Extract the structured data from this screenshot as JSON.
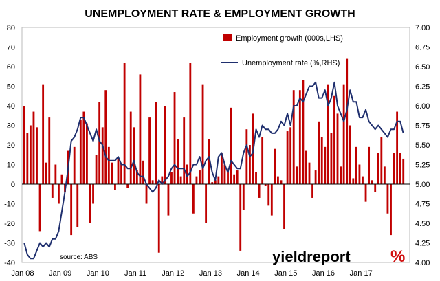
{
  "chart_data": {
    "type": "bar+line",
    "title": "UNEMPLOYMENT RATE & EMPLOYMENT GROWTH",
    "source": "source: ABS",
    "brand": {
      "text": "yieldreport",
      "symbol": "%",
      "accent_color": "#d11010"
    },
    "x_ticks": [
      "Jan 08",
      "Jan 09",
      "Jan 10",
      "Jan 11",
      "Jan 12",
      "Jan 13",
      "Jan 14",
      "Jan 15",
      "Jan 16",
      "Jan 17"
    ],
    "left_axis": {
      "ylim": [
        -40,
        80
      ],
      "ticks": [
        -40,
        -30,
        -20,
        -10,
        0,
        10,
        20,
        30,
        40,
        50,
        60,
        70,
        80
      ]
    },
    "right_axis": {
      "ylim": [
        4.0,
        7.0
      ],
      "ticks": [
        "4.00",
        "4.25",
        "4.50",
        "4.75",
        "5.00",
        "5.25",
        "5.50",
        "5.75",
        "6.00",
        "6.25",
        "6.50",
        "6.75",
        "7.00"
      ]
    },
    "grid": false,
    "legend_position": "top-right",
    "series": [
      {
        "name": "Employment growth (000s,LHS)",
        "type": "bar",
        "axis": "left",
        "color": "#c00000",
        "values": [
          40,
          26,
          30,
          37,
          29,
          -24,
          51,
          11,
          34,
          -7,
          10,
          -10,
          5,
          -4,
          17,
          -26,
          19,
          -22,
          33,
          37,
          31,
          -20,
          -10,
          15,
          42,
          29,
          48,
          19,
          11,
          -3,
          14,
          11,
          62,
          -2,
          37,
          29,
          7,
          56,
          12,
          -10,
          34,
          2,
          42,
          -35,
          4,
          40,
          -16,
          6,
          47,
          23,
          4,
          34,
          10,
          62,
          -15,
          4,
          7,
          51,
          -20,
          23,
          1,
          2,
          4,
          16,
          10,
          7,
          39,
          5,
          7,
          -34,
          -13,
          28,
          20,
          36,
          6,
          -7,
          24,
          -1,
          -11,
          -16,
          18,
          4,
          2,
          -23,
          27,
          29,
          48,
          9,
          48,
          53,
          17,
          11,
          -7,
          7,
          32,
          24,
          19,
          51,
          26,
          45,
          36,
          9,
          51,
          64,
          30,
          3,
          19,
          10,
          4,
          -9,
          19,
          2,
          -4,
          16,
          24,
          9,
          -15,
          -26,
          16,
          37,
          16,
          13
        ]
      },
      {
        "name": "Unemployment rate (%,RHS)",
        "type": "line",
        "axis": "right",
        "color": "#1f2f6e",
        "values": [
          4.25,
          4.1,
          4.05,
          4.05,
          4.15,
          4.25,
          4.2,
          4.25,
          4.2,
          4.3,
          4.3,
          4.4,
          4.65,
          4.9,
          5.2,
          5.55,
          5.6,
          5.7,
          5.85,
          5.85,
          5.75,
          5.65,
          5.55,
          5.7,
          5.55,
          5.5,
          5.35,
          5.3,
          5.3,
          5.3,
          5.35,
          5.25,
          5.25,
          5.2,
          5.2,
          5.3,
          5.15,
          5.1,
          5.1,
          5.0,
          4.95,
          4.9,
          4.95,
          5.05,
          5.0,
          5.05,
          5.1,
          5.2,
          5.25,
          5.2,
          5.2,
          5.2,
          5.1,
          5.15,
          5.25,
          5.25,
          5.35,
          5.2,
          5.3,
          5.35,
          5.15,
          5.05,
          5.35,
          5.4,
          5.25,
          5.15,
          5.3,
          5.25,
          5.2,
          5.2,
          5.4,
          5.5,
          5.35,
          5.4,
          5.7,
          5.6,
          5.75,
          5.7,
          5.7,
          5.65,
          5.65,
          5.7,
          5.8,
          5.75,
          5.9,
          5.75,
          6.0,
          6.0,
          6.1,
          6.05,
          6.15,
          6.25,
          6.25,
          6.3,
          6.1,
          6.1,
          6.2,
          6.0,
          6.1,
          6.3,
          6.0,
          5.9,
          5.8,
          5.95,
          6.2,
          6.05,
          6.05,
          5.85,
          5.85,
          5.95,
          5.8,
          5.75,
          5.7,
          5.75,
          5.7,
          5.65,
          5.6,
          5.7,
          5.7,
          5.8,
          5.8,
          5.65
        ]
      }
    ]
  }
}
